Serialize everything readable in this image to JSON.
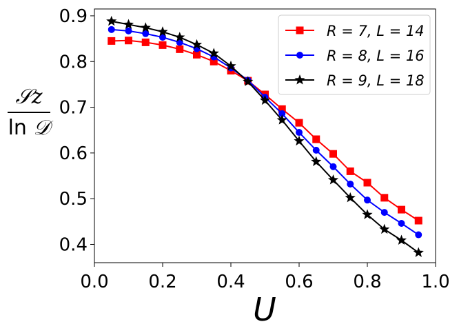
{
  "chart_data": {
    "type": "line",
    "title": "",
    "xlabel": "U",
    "ylabel": {
      "numerator": "𝒮z",
      "den_prefix": "ln",
      "den_symbol": "𝒟"
    },
    "xlim": [
      0.0,
      1.0
    ],
    "ylim": [
      0.36,
      0.915
    ],
    "xticks": [
      0.0,
      0.2,
      0.4,
      0.6,
      0.8,
      1.0
    ],
    "xtick_labels": [
      "0.0",
      "0.2",
      "0.4",
      "0.6",
      "0.8",
      "1.0"
    ],
    "yticks": [
      0.4,
      0.5,
      0.6,
      0.7,
      0.8,
      0.9
    ],
    "ytick_labels": [
      "0.4",
      "0.5",
      "0.6",
      "0.7",
      "0.8",
      "0.9"
    ],
    "x": [
      0.05,
      0.1,
      0.15,
      0.2,
      0.25,
      0.3,
      0.35,
      0.4,
      0.45,
      0.5,
      0.55,
      0.6,
      0.65,
      0.7,
      0.75,
      0.8,
      0.85,
      0.9,
      0.95
    ],
    "legend_position": "top-right",
    "series": [
      {
        "name": "R = 7, L = 14",
        "color": "#ff0000",
        "marker": "square",
        "values": [
          0.845,
          0.846,
          0.842,
          0.836,
          0.827,
          0.815,
          0.8,
          0.78,
          0.758,
          0.728,
          0.696,
          0.666,
          0.63,
          0.598,
          0.56,
          0.535,
          0.502,
          0.476,
          0.452
        ]
      },
      {
        "name": "R = 8, L = 16",
        "color": "#0000ff",
        "marker": "circle",
        "values": [
          0.87,
          0.867,
          0.861,
          0.853,
          0.842,
          0.828,
          0.81,
          0.786,
          0.759,
          0.722,
          0.686,
          0.645,
          0.606,
          0.57,
          0.532,
          0.497,
          0.47,
          0.446,
          0.421
        ]
      },
      {
        "name": "R = 9, L = 18",
        "color": "#000000",
        "marker": "star",
        "values": [
          0.888,
          0.881,
          0.874,
          0.865,
          0.853,
          0.837,
          0.818,
          0.79,
          0.756,
          0.715,
          0.672,
          0.626,
          0.581,
          0.541,
          0.502,
          0.465,
          0.433,
          0.409,
          0.382
        ]
      }
    ]
  }
}
